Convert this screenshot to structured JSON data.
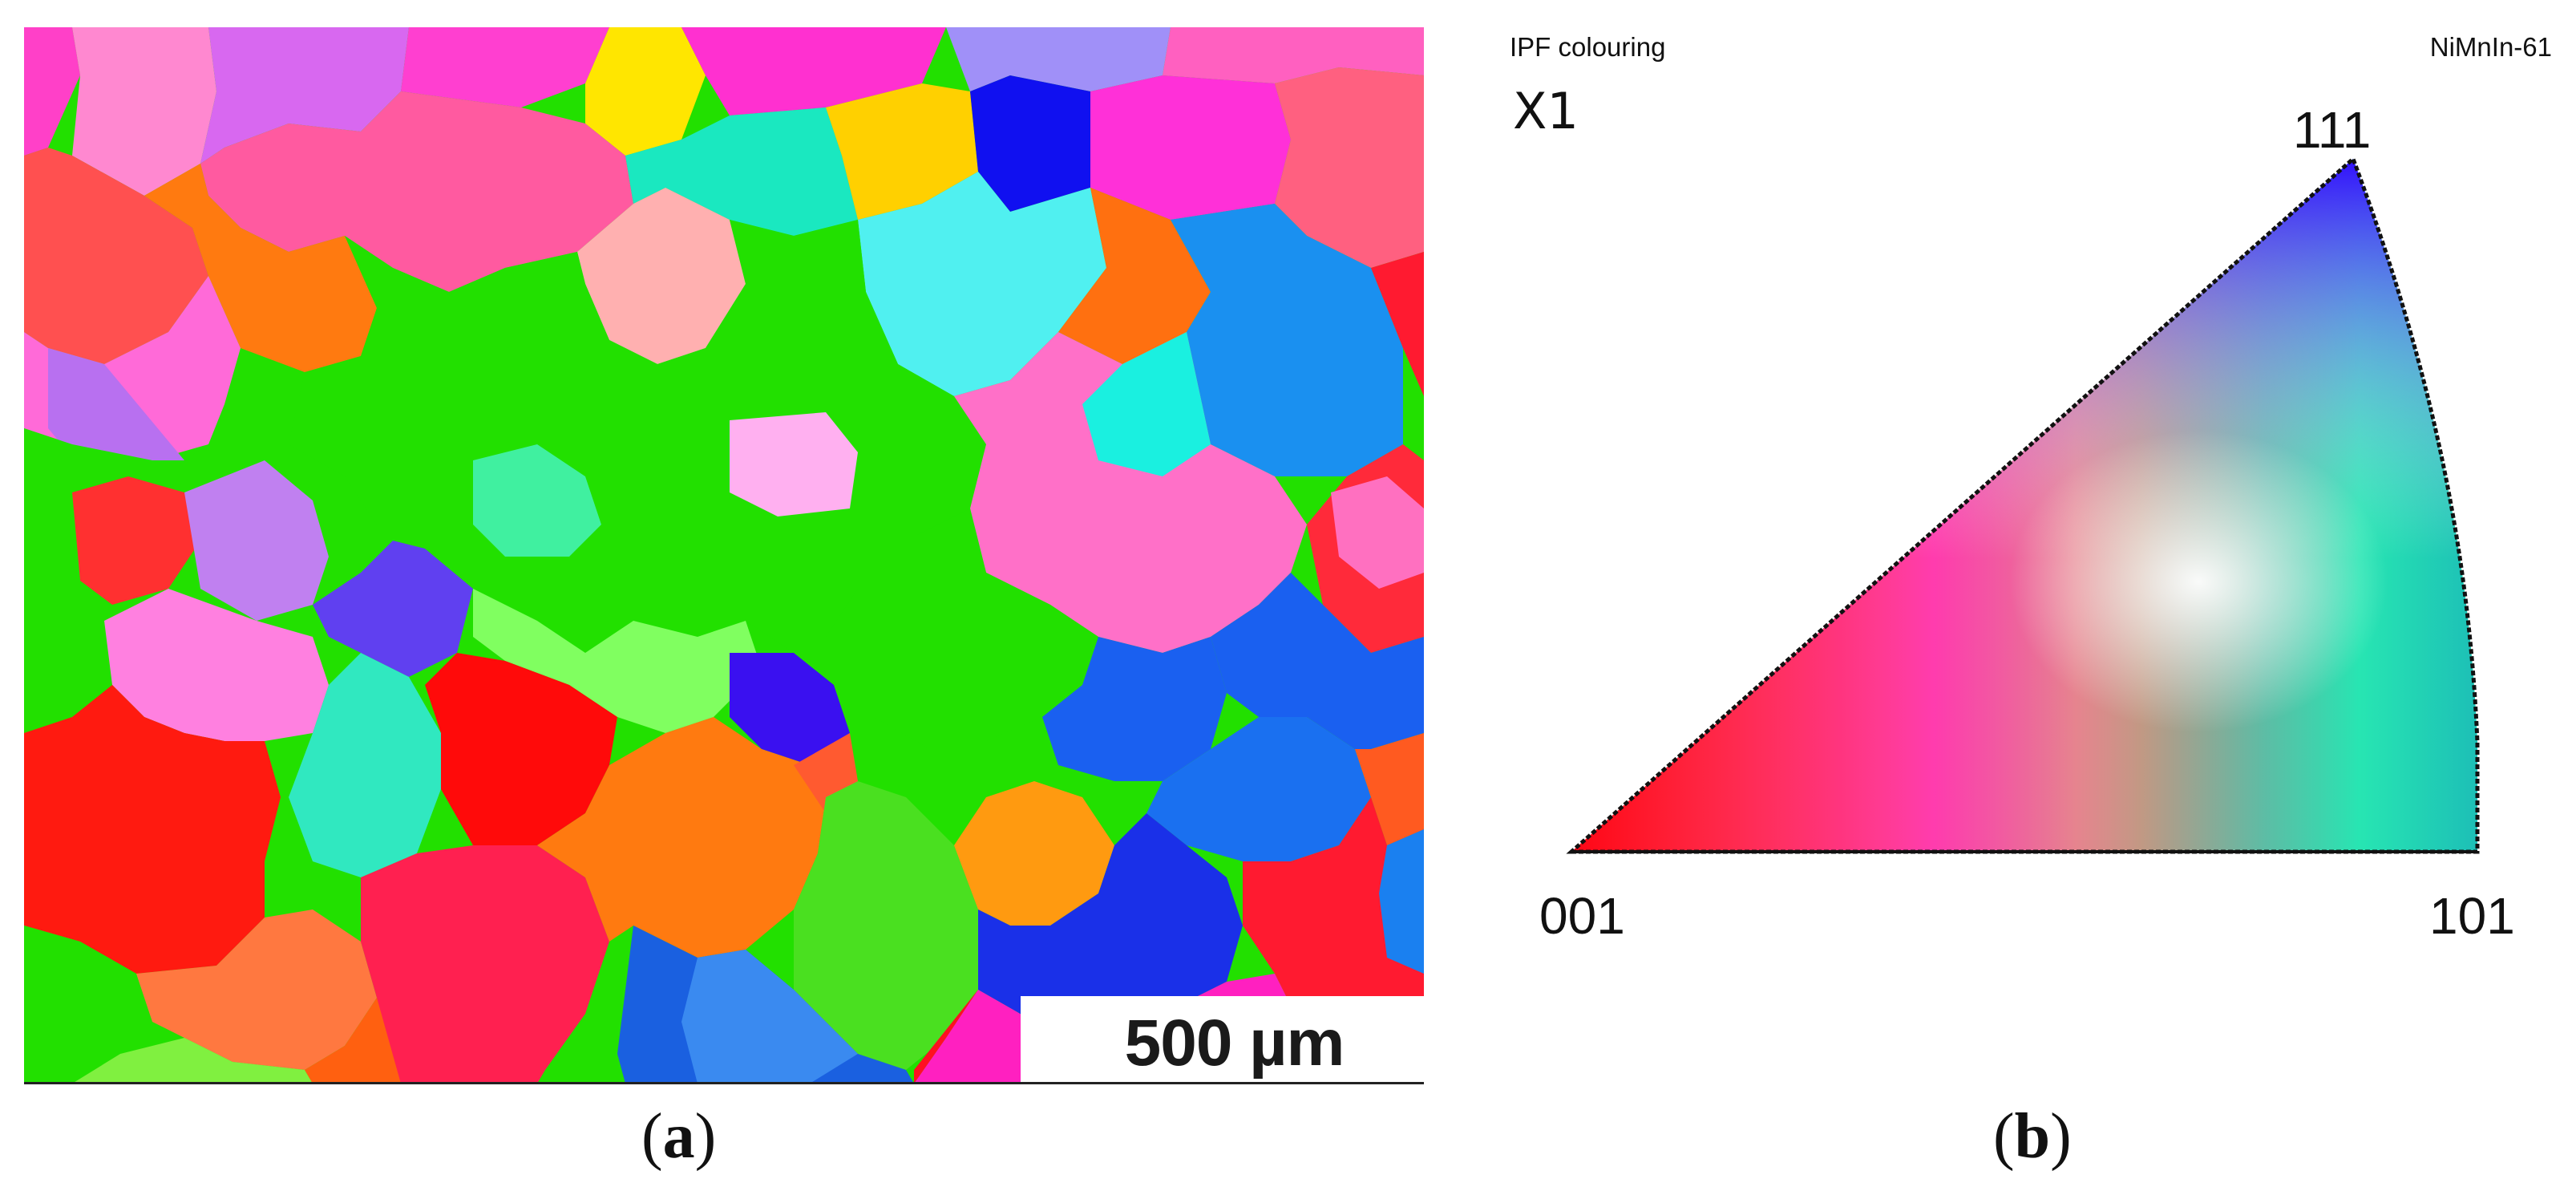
{
  "panel_a": {
    "scale_bar_label": "500 µm",
    "caption": "a"
  },
  "panel_b": {
    "header_left": "IPF colouring",
    "header_right": "NiMnIn-61",
    "direction": "X1",
    "corner_111": "111",
    "corner_001": "001",
    "corner_101": "101",
    "caption": "b"
  },
  "colors": {
    "red": "#ff1a1a",
    "green": "#22e000",
    "blue": "#1a40ff",
    "cyan": "#1ae8e0",
    "magenta": "#ff2ad8",
    "pink": "#ff70c8",
    "orange": "#ff7a10",
    "yellow": "#ffe000"
  }
}
